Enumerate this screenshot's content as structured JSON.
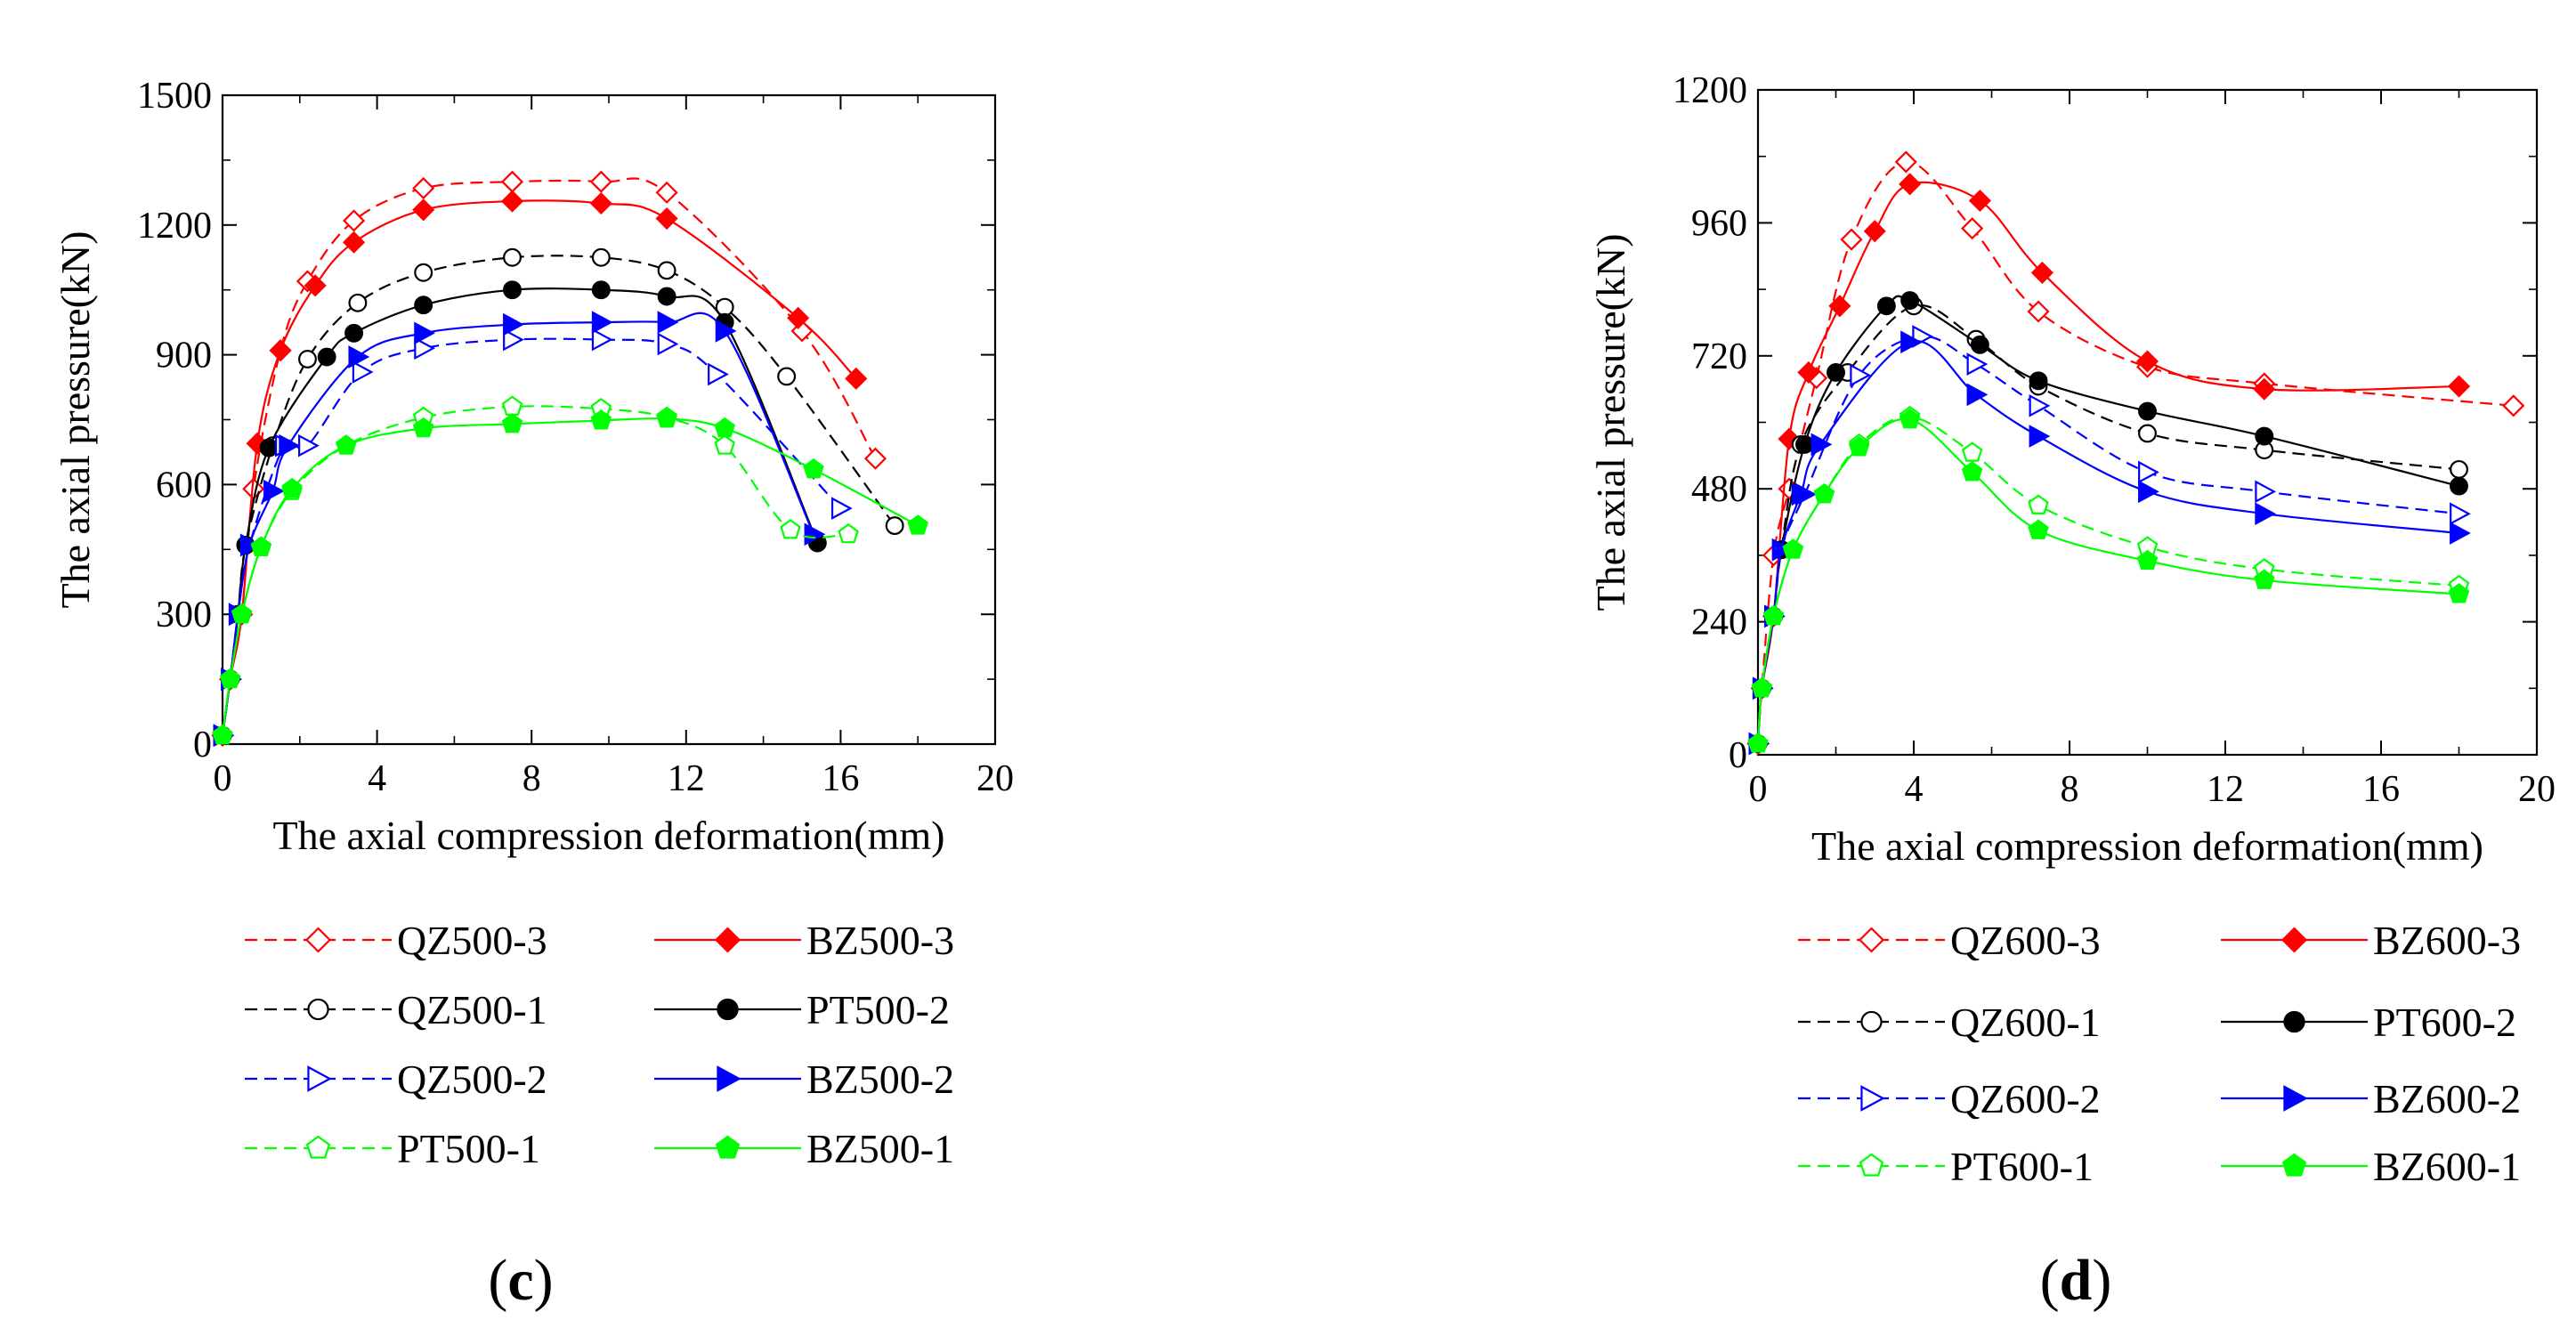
{
  "chart_data": [
    {
      "type": "line",
      "panel_label": "c",
      "xlabel": "The axial compression deformation(mm)",
      "ylabel": "The axial pressure(kN)",
      "xlim": [
        0,
        20
      ],
      "ylim": [
        0,
        1500
      ],
      "xticks": [
        "0",
        "4",
        "8",
        "12",
        "16",
        "20"
      ],
      "yticks": [
        "0",
        "300",
        "600",
        "900",
        "1200",
        "1500"
      ],
      "legend_position": "bottom",
      "series": [
        {
          "name": "QZ500-3",
          "color": "#ff0000",
          "dash": true,
          "marker": "diamond-open",
          "points": [
            [
              0,
              20
            ],
            [
              0.2,
              150
            ],
            [
              0.5,
              300
            ],
            [
              0.8,
              590
            ],
            [
              1.5,
              910
            ],
            [
              2.2,
              1070
            ],
            [
              3.4,
              1210
            ],
            [
              5.2,
              1285
            ],
            [
              7.5,
              1300
            ],
            [
              9.8,
              1300
            ],
            [
              11.5,
              1275
            ],
            [
              15,
              955
            ],
            [
              16.9,
              660
            ]
          ]
        },
        {
          "name": "BZ500-3",
          "color": "#ff0000",
          "dash": false,
          "marker": "diamond-filled",
          "points": [
            [
              0,
              20
            ],
            [
              0.2,
              150
            ],
            [
              0.5,
              300
            ],
            [
              0.9,
              695
            ],
            [
              1.5,
              910
            ],
            [
              2.4,
              1060
            ],
            [
              3.4,
              1160
            ],
            [
              5.2,
              1235
            ],
            [
              7.5,
              1255
            ],
            [
              9.8,
              1250
            ],
            [
              11.5,
              1215
            ],
            [
              14.9,
              985
            ],
            [
              16.4,
              845
            ]
          ]
        },
        {
          "name": "QZ500-1",
          "color": "#000000",
          "dash": true,
          "marker": "circle-open",
          "points": [
            [
              0,
              20
            ],
            [
              0.2,
              150
            ],
            [
              0.4,
              300
            ],
            [
              0.6,
              460
            ],
            [
              1.3,
              690
            ],
            [
              2.2,
              890
            ],
            [
              3.5,
              1020
            ],
            [
              5.2,
              1090
            ],
            [
              7.5,
              1125
            ],
            [
              9.8,
              1125
            ],
            [
              11.5,
              1095
            ],
            [
              13,
              1010
            ],
            [
              14.6,
              850
            ],
            [
              17.4,
              505
            ]
          ]
        },
        {
          "name": "PT500-2",
          "color": "#000000",
          "dash": false,
          "marker": "circle-filled",
          "points": [
            [
              0,
              20
            ],
            [
              0.2,
              150
            ],
            [
              0.4,
              300
            ],
            [
              0.6,
              460
            ],
            [
              1.2,
              685
            ],
            [
              2.7,
              895
            ],
            [
              3.4,
              950
            ],
            [
              5.2,
              1015
            ],
            [
              7.5,
              1050
            ],
            [
              9.8,
              1050
            ],
            [
              11.5,
              1035
            ],
            [
              13,
              975
            ],
            [
              15.4,
              465
            ]
          ]
        },
        {
          "name": "QZ500-2",
          "color": "#0000ff",
          "dash": true,
          "marker": "triangle-right-open",
          "points": [
            [
              0,
              20
            ],
            [
              0.2,
              150
            ],
            [
              0.4,
              300
            ],
            [
              0.7,
              460
            ],
            [
              1.6,
              690
            ],
            [
              2.2,
              690
            ],
            [
              3.6,
              860
            ],
            [
              5.2,
              915
            ],
            [
              7.5,
              935
            ],
            [
              9.8,
              935
            ],
            [
              11.5,
              925
            ],
            [
              12.8,
              855
            ],
            [
              16,
              545
            ]
          ]
        },
        {
          "name": "BZ500-2",
          "color": "#0000ff",
          "dash": false,
          "marker": "triangle-right-filled",
          "points": [
            [
              0,
              20
            ],
            [
              0.2,
              150
            ],
            [
              0.4,
              300
            ],
            [
              0.7,
              460
            ],
            [
              1.3,
              585
            ],
            [
              1.7,
              690
            ],
            [
              3.5,
              895
            ],
            [
              5.2,
              950
            ],
            [
              7.5,
              970
            ],
            [
              9.8,
              975
            ],
            [
              11.5,
              975
            ],
            [
              13,
              955
            ],
            [
              15.3,
              485
            ]
          ]
        },
        {
          "name": "PT500-1",
          "color": "#00ff00",
          "dash": true,
          "marker": "pentagon-open",
          "points": [
            [
              0,
              20
            ],
            [
              0.2,
              150
            ],
            [
              0.5,
              300
            ],
            [
              1,
              455
            ],
            [
              1.8,
              585
            ],
            [
              3.2,
              690
            ],
            [
              5.2,
              755
            ],
            [
              7.5,
              780
            ],
            [
              9.8,
              775
            ],
            [
              11.5,
              755
            ],
            [
              13,
              690
            ],
            [
              14.7,
              495
            ],
            [
              16.2,
              485
            ]
          ]
        },
        {
          "name": "BZ500-1",
          "color": "#00ff00",
          "dash": false,
          "marker": "pentagon-filled",
          "points": [
            [
              0,
              20
            ],
            [
              0.2,
              150
            ],
            [
              0.5,
              300
            ],
            [
              1,
              455
            ],
            [
              1.8,
              590
            ],
            [
              3.2,
              690
            ],
            [
              5.2,
              730
            ],
            [
              7.5,
              740
            ],
            [
              9.8,
              748
            ],
            [
              11.5,
              752
            ],
            [
              13,
              730
            ],
            [
              15.3,
              635
            ],
            [
              18,
              505
            ]
          ]
        }
      ]
    },
    {
      "type": "line",
      "panel_label": "d",
      "xlabel": "The axial compression deformation(mm)",
      "ylabel": "The axial pressure(kN)",
      "xlim": [
        0,
        20
      ],
      "ylim": [
        0,
        1200
      ],
      "xticks": [
        "0",
        "4",
        "8",
        "12",
        "16",
        "20"
      ],
      "yticks": [
        "0",
        "240",
        "480",
        "720",
        "960",
        "1200"
      ],
      "legend_position": "bottom",
      "series": [
        {
          "name": "QZ600-3",
          "color": "#ff0000",
          "dash": true,
          "marker": "diamond-open",
          "points": [
            [
              0,
              20
            ],
            [
              0.1,
              120
            ],
            [
              0.4,
              360
            ],
            [
              0.8,
              480
            ],
            [
              1.5,
              680
            ],
            [
              2.4,
              930
            ],
            [
              3.8,
              1070
            ],
            [
              5.5,
              950
            ],
            [
              7.2,
              800
            ],
            [
              10,
              700
            ],
            [
              13,
              670
            ],
            [
              19.4,
              630
            ]
          ]
        },
        {
          "name": "BZ600-3",
          "color": "#ff0000",
          "dash": false,
          "marker": "diamond-filled",
          "points": [
            [
              0,
              20
            ],
            [
              0.1,
              120
            ],
            [
              0.4,
              250
            ],
            [
              0.8,
              570
            ],
            [
              1.3,
              690
            ],
            [
              2.1,
              810
            ],
            [
              3,
              945
            ],
            [
              3.9,
              1030
            ],
            [
              5.7,
              1000
            ],
            [
              7.3,
              870
            ],
            [
              10,
              710
            ],
            [
              13,
              660
            ],
            [
              18,
              665
            ]
          ]
        },
        {
          "name": "QZ600-1",
          "color": "#000000",
          "dash": true,
          "marker": "circle-open",
          "points": [
            [
              0,
              20
            ],
            [
              0.1,
              120
            ],
            [
              0.4,
              250
            ],
            [
              0.6,
              370
            ],
            [
              1.1,
              560
            ],
            [
              2.3,
              690
            ],
            [
              4,
              810
            ],
            [
              5.6,
              750
            ],
            [
              7.2,
              665
            ],
            [
              10,
              580
            ],
            [
              13,
              550
            ],
            [
              18,
              515
            ]
          ]
        },
        {
          "name": "PT600-2",
          "color": "#000000",
          "dash": false,
          "marker": "circle-filled",
          "points": [
            [
              0,
              20
            ],
            [
              0.1,
              120
            ],
            [
              0.4,
              250
            ],
            [
              0.6,
              370
            ],
            [
              1.2,
              560
            ],
            [
              2,
              690
            ],
            [
              3.3,
              810
            ],
            [
              3.9,
              820
            ],
            [
              5.7,
              740
            ],
            [
              7.2,
              675
            ],
            [
              10,
              620
            ],
            [
              13,
              575
            ],
            [
              18,
              485
            ]
          ]
        },
        {
          "name": "QZ600-2",
          "color": "#0000ff",
          "dash": true,
          "marker": "triangle-right-open",
          "points": [
            [
              0,
              20
            ],
            [
              0.1,
              120
            ],
            [
              0.4,
              250
            ],
            [
              0.6,
              370
            ],
            [
              1.2,
              470
            ],
            [
              2.6,
              685
            ],
            [
              4.2,
              755
            ],
            [
              5.6,
              705
            ],
            [
              7.2,
              630
            ],
            [
              10,
              510
            ],
            [
              13,
              475
            ],
            [
              18,
              435
            ]
          ]
        },
        {
          "name": "BZ600-2",
          "color": "#0000ff",
          "dash": false,
          "marker": "triangle-right-filled",
          "points": [
            [
              0,
              20
            ],
            [
              0.1,
              120
            ],
            [
              0.4,
              250
            ],
            [
              0.6,
              370
            ],
            [
              1.1,
              470
            ],
            [
              1.6,
              560
            ],
            [
              3.9,
              745
            ],
            [
              5.6,
              650
            ],
            [
              7.2,
              575
            ],
            [
              10,
              475
            ],
            [
              13,
              435
            ],
            [
              18,
              400
            ]
          ]
        },
        {
          "name": "PT600-1",
          "color": "#00ff00",
          "dash": true,
          "marker": "pentagon-open",
          "points": [
            [
              0,
              20
            ],
            [
              0.1,
              120
            ],
            [
              0.4,
              250
            ],
            [
              0.9,
              370
            ],
            [
              1.7,
              470
            ],
            [
              2.6,
              560
            ],
            [
              3.9,
              610
            ],
            [
              5.5,
              545
            ],
            [
              7.2,
              450
            ],
            [
              10,
              375
            ],
            [
              13,
              335
            ],
            [
              18,
              305
            ]
          ]
        },
        {
          "name": "BZ600-1",
          "color": "#00ff00",
          "dash": false,
          "marker": "pentagon-filled",
          "points": [
            [
              0,
              20
            ],
            [
              0.1,
              120
            ],
            [
              0.4,
              250
            ],
            [
              0.9,
              370
            ],
            [
              1.7,
              470
            ],
            [
              2.6,
              555
            ],
            [
              3.9,
              605
            ],
            [
              5.5,
              510
            ],
            [
              7.2,
              405
            ],
            [
              10,
              350
            ],
            [
              13,
              315
            ],
            [
              18,
              290
            ]
          ]
        }
      ]
    }
  ]
}
